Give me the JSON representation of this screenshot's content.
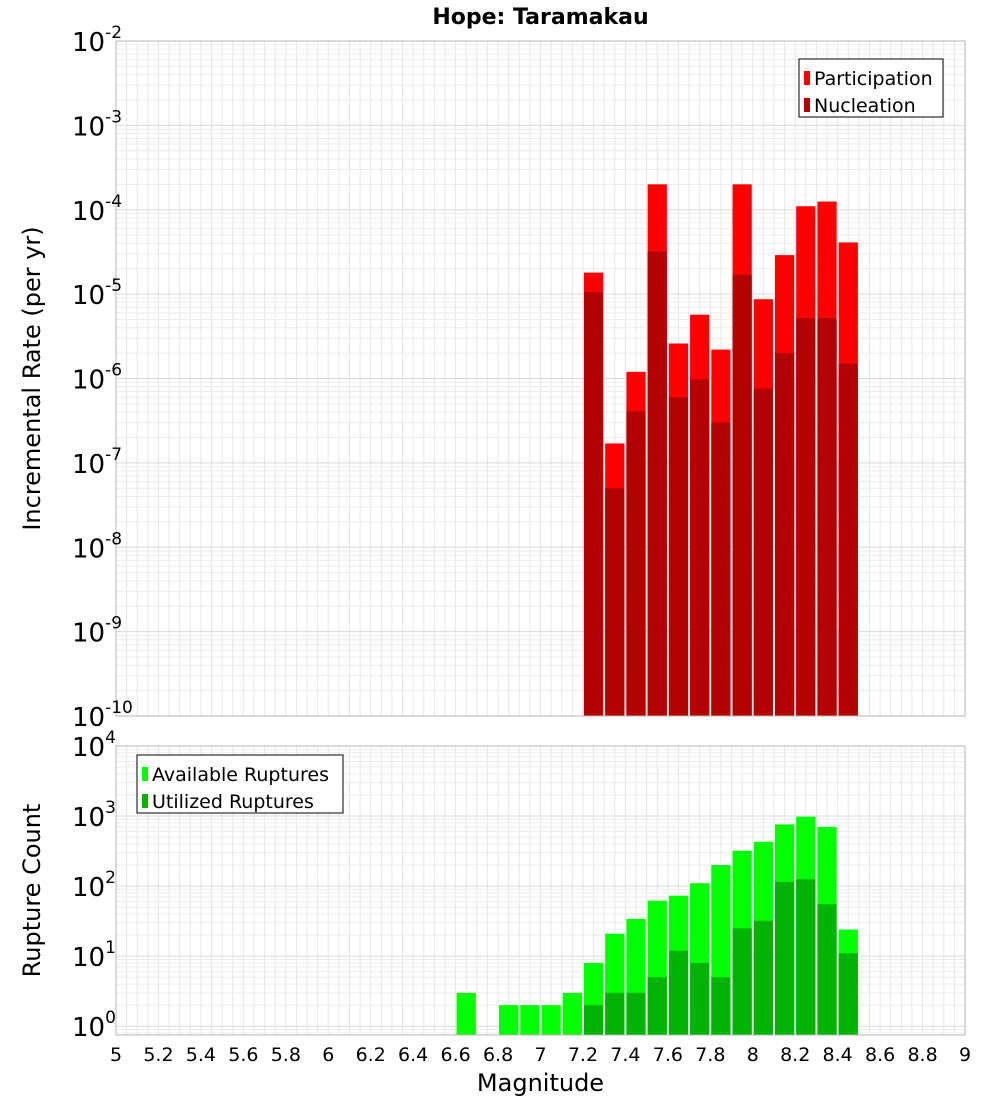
{
  "chart_data": [
    {
      "type": "bar",
      "title": "Hope: Taramakau",
      "xlabel": "",
      "ylabel": "Incremental Rate (per yr)",
      "y_scale": "log",
      "xlim": [
        5,
        9
      ],
      "ylim": [
        1e-10,
        0.01
      ],
      "y_ticks": [
        {
          "base": "10",
          "exp": "-10",
          "value": 1e-10
        },
        {
          "base": "10",
          "exp": "-9",
          "value": 1e-09
        },
        {
          "base": "10",
          "exp": "-8",
          "value": 1e-08
        },
        {
          "base": "10",
          "exp": "-7",
          "value": 1e-07
        },
        {
          "base": "10",
          "exp": "-6",
          "value": 1e-06
        },
        {
          "base": "10",
          "exp": "-5",
          "value": 1e-05
        },
        {
          "base": "10",
          "exp": "-4",
          "value": 0.0001
        },
        {
          "base": "10",
          "exp": "-3",
          "value": 0.001
        },
        {
          "base": "10",
          "exp": "-2",
          "value": 0.01
        }
      ],
      "grid": true,
      "legend_position": "top-right",
      "x": [
        7.25,
        7.35,
        7.45,
        7.55,
        7.65,
        7.75,
        7.85,
        7.95,
        8.05,
        8.15,
        8.25,
        8.35,
        8.45
      ],
      "series": [
        {
          "name": "Participation",
          "color": "#ff0000",
          "values": [
            1.8e-05,
            1.7e-07,
            1.2e-06,
            0.0002,
            2.6e-06,
            5.7e-06,
            2.2e-06,
            0.0002,
            8.7e-06,
            2.9e-05,
            0.00011,
            0.000125,
            4.1e-05
          ]
        },
        {
          "name": "Nucleation",
          "color": "#b30000",
          "values": [
            1.05e-05,
            5e-08,
            4.1e-07,
            3.2e-05,
            6e-07,
            9.8e-07,
            3e-07,
            1.7e-05,
            7.6e-07,
            2e-06,
            5.2e-06,
            5.2e-06,
            1.5e-06
          ]
        }
      ]
    },
    {
      "type": "bar",
      "title": "",
      "xlabel": "Magnitude",
      "ylabel": "Rupture Count",
      "y_scale": "log",
      "xlim": [
        5,
        9
      ],
      "ylim": [
        0.75,
        10000
      ],
      "x_ticks": [
        "5",
        "5.2",
        "5.4",
        "5.6",
        "5.8",
        "6",
        "6.2",
        "6.4",
        "6.6",
        "6.8",
        "7",
        "7.2",
        "7.4",
        "7.6",
        "7.8",
        "8",
        "8.2",
        "8.4",
        "8.6",
        "8.8",
        "9"
      ],
      "y_ticks": [
        {
          "base": "10",
          "exp": "0",
          "value": 1
        },
        {
          "base": "10",
          "exp": "1",
          "value": 10
        },
        {
          "base": "10",
          "exp": "2",
          "value": 100
        },
        {
          "base": "10",
          "exp": "3",
          "value": 1000
        },
        {
          "base": "10",
          "exp": "4",
          "value": 10000
        }
      ],
      "grid": true,
      "legend_position": "top-left",
      "x": [
        6.65,
        6.85,
        6.95,
        7.05,
        7.15,
        7.25,
        7.35,
        7.45,
        7.55,
        7.65,
        7.75,
        7.85,
        7.95,
        8.05,
        8.15,
        8.25,
        8.35,
        8.45
      ],
      "series": [
        {
          "name": "Available Ruptures",
          "color": "#00ff00",
          "values": [
            3,
            2,
            2,
            2,
            3,
            8,
            21,
            34,
            62,
            73,
            110,
            200,
            320,
            430,
            760,
            980,
            700,
            24
          ]
        },
        {
          "name": "Utilized Ruptures",
          "color": "#00b300",
          "values": [
            0,
            0,
            0,
            0,
            0,
            2,
            3,
            3,
            5,
            12,
            8,
            5,
            25,
            32,
            115,
            125,
            55,
            11
          ]
        }
      ]
    }
  ]
}
